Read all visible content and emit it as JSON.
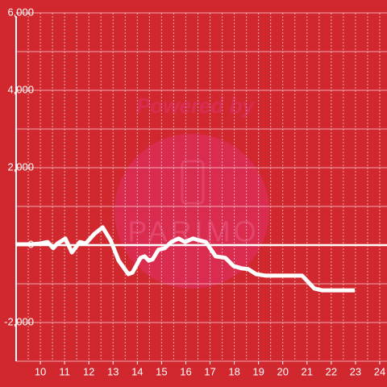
{
  "chart_data": {
    "type": "line",
    "watermark": [
      "Powered by",
      "PARIMO"
    ],
    "x": [
      9.0,
      9.63,
      9.97,
      10.3,
      10.53,
      10.7,
      11.03,
      11.3,
      11.63,
      11.87,
      12.23,
      12.57,
      12.9,
      13.23,
      13.63,
      13.8,
      14.13,
      14.3,
      14.47,
      14.63,
      14.87,
      15.13,
      15.4,
      15.7,
      15.97,
      16.3,
      16.57,
      16.83,
      17.23,
      17.63,
      17.97,
      18.3,
      18.57,
      18.9,
      19.3,
      20.8,
      21.3,
      21.63,
      22.97
    ],
    "series": [
      {
        "color": "#ffffff",
        "values": [
          20,
          20,
          40,
          80,
          -80,
          40,
          170,
          -190,
          80,
          40,
          290,
          460,
          120,
          -400,
          -750,
          -710,
          -330,
          -290,
          -400,
          -370,
          -120,
          -80,
          80,
          170,
          80,
          170,
          120,
          80,
          -290,
          -330,
          -540,
          -600,
          -620,
          -750,
          -790,
          -790,
          -1120,
          -1170,
          -1170
        ]
      }
    ],
    "xlim": [
      9,
      24.3
    ],
    "ylim": [
      -3000,
      6000
    ],
    "xticks": [
      10,
      11,
      12,
      13,
      14,
      15,
      16,
      17,
      18,
      19,
      20,
      21,
      22,
      23,
      24
    ],
    "yticks": [
      {
        "value": -2000,
        "label": "-2,000"
      },
      0,
      {
        "value": 2000,
        "label": "2,000"
      },
      {
        "value": 4000,
        "label": "4,000"
      },
      {
        "value": 6000,
        "label": "6,000"
      }
    ],
    "y_grid": [
      -3000,
      -2000,
      -1000,
      0,
      1000,
      2000,
      3000,
      4000,
      5000,
      6000
    ],
    "x_grid": [
      9.5,
      10,
      10.5,
      11,
      11.5,
      12,
      12.5,
      13,
      13.5,
      14,
      14.5,
      15,
      15.5,
      16,
      16.5,
      17,
      17.5,
      18,
      18.5,
      19,
      19.5,
      20,
      20.5,
      21,
      21.5,
      22,
      22.5,
      23,
      23.5,
      24
    ],
    "background": "#d0282e"
  }
}
